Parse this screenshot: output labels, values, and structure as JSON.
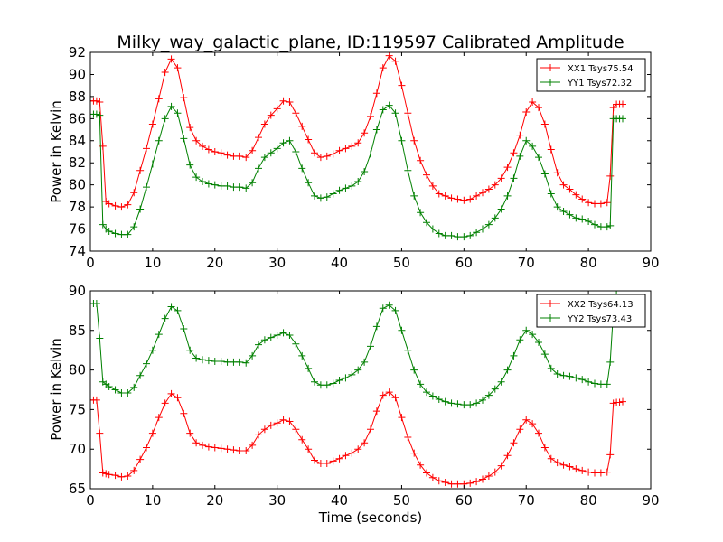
{
  "figure_title": "Milky_way_galactic_plane, ID:119597 Calibrated Amplitude",
  "chart_data": [
    {
      "type": "line",
      "title": "Milky_way_galactic_plane, ID:119597 Calibrated Amplitude",
      "xlabel": "",
      "ylabel": "Power in Kelvin",
      "xlim": [
        0,
        90
      ],
      "ylim": [
        74,
        92
      ],
      "xticks": [
        "0",
        "10",
        "20",
        "30",
        "40",
        "50",
        "60",
        "70",
        "80",
        "90"
      ],
      "yticks": [
        "74",
        "76",
        "78",
        "80",
        "82",
        "84",
        "86",
        "88",
        "90",
        "92"
      ],
      "marker": "+",
      "legend_position": "top-right",
      "series": [
        {
          "name": "XX1 Tsys75.54",
          "color": "#ff0000",
          "x": [
            0,
            0.5,
            1,
            1.5,
            2,
            2.5,
            3,
            4,
            5,
            6,
            7,
            8,
            9,
            10,
            11,
            12,
            13,
            14,
            15,
            16,
            17,
            18,
            19,
            20,
            21,
            22,
            23,
            24,
            25,
            26,
            27,
            28,
            29,
            30,
            31,
            32,
            33,
            34,
            35,
            36,
            37,
            38,
            39,
            40,
            41,
            42,
            43,
            44,
            45,
            46,
            47,
            48,
            49,
            50,
            51,
            52,
            53,
            54,
            55,
            56,
            57,
            58,
            59,
            60,
            61,
            62,
            63,
            64,
            65,
            66,
            67,
            68,
            69,
            70,
            71,
            72,
            73,
            74,
            75,
            76,
            77,
            78,
            79,
            80,
            81,
            82,
            83,
            83.5,
            84,
            84.5,
            85,
            85.5
          ],
          "y": [
            87.6,
            87.6,
            87.6,
            87.5,
            83.5,
            78.5,
            78.3,
            78.1,
            78,
            78.2,
            79.3,
            81.3,
            83.3,
            85.5,
            87.8,
            90.2,
            91.4,
            90.6,
            87.9,
            85.2,
            84,
            83.5,
            83.2,
            83,
            82.9,
            82.7,
            82.6,
            82.6,
            82.5,
            83.1,
            84.3,
            85.5,
            86.3,
            86.9,
            87.6,
            87.5,
            86.5,
            85.3,
            84.1,
            82.9,
            82.5,
            82.6,
            82.8,
            83.1,
            83.3,
            83.5,
            83.8,
            84.7,
            86.2,
            88.3,
            90.6,
            91.7,
            91.2,
            89,
            86.5,
            84,
            82.2,
            80.9,
            79.9,
            79.2,
            79,
            78.8,
            78.7,
            78.6,
            78.7,
            79,
            79.3,
            79.6,
            80,
            80.6,
            81.6,
            82.9,
            84.5,
            86.6,
            87.5,
            87,
            85.5,
            83.2,
            81.1,
            80,
            79.6,
            79.1,
            78.7,
            78.4,
            78.3,
            78.3,
            78.4,
            80.8,
            87,
            87.3,
            87.3,
            87.3
          ]
        },
        {
          "name": "YY1 Tsys72.32",
          "color": "#008000",
          "x": [
            0,
            0.5,
            1,
            1.5,
            2,
            2.5,
            3,
            4,
            5,
            6,
            7,
            8,
            9,
            10,
            11,
            12,
            13,
            14,
            15,
            16,
            17,
            18,
            19,
            20,
            21,
            22,
            23,
            24,
            25,
            26,
            27,
            28,
            29,
            30,
            31,
            32,
            33,
            34,
            35,
            36,
            37,
            38,
            39,
            40,
            41,
            42,
            43,
            44,
            45,
            46,
            47,
            48,
            49,
            50,
            51,
            52,
            53,
            54,
            55,
            56,
            57,
            58,
            59,
            60,
            61,
            62,
            63,
            64,
            65,
            66,
            67,
            68,
            69,
            70,
            71,
            72,
            73,
            74,
            75,
            76,
            77,
            78,
            79,
            80,
            81,
            82,
            83,
            83.5,
            84,
            84.5,
            85,
            85.5
          ],
          "y": [
            86.4,
            86.4,
            86.4,
            86.3,
            76.4,
            76,
            75.8,
            75.6,
            75.5,
            75.5,
            76.2,
            77.8,
            79.8,
            81.9,
            84,
            86,
            87.1,
            86.5,
            84.2,
            81.8,
            80.7,
            80.3,
            80.1,
            80,
            79.9,
            79.9,
            79.8,
            79.8,
            79.7,
            80.2,
            81.5,
            82.5,
            82.9,
            83.3,
            83.8,
            84,
            83,
            81.5,
            80.2,
            79,
            78.8,
            78.9,
            79.2,
            79.5,
            79.7,
            79.9,
            80.3,
            81.2,
            82.8,
            85,
            86.8,
            87.2,
            86.5,
            84,
            81.3,
            79,
            77.5,
            76.6,
            76,
            75.6,
            75.4,
            75.4,
            75.3,
            75.3,
            75.4,
            75.7,
            76,
            76.4,
            77,
            77.8,
            79,
            80.6,
            82.6,
            84,
            83.5,
            82.5,
            81,
            79.2,
            78,
            77.6,
            77.3,
            77,
            76.9,
            76.7,
            76.4,
            76.2,
            76.2,
            76.3,
            86,
            86,
            86,
            86
          ]
        }
      ]
    },
    {
      "type": "line",
      "title": "",
      "xlabel": "Time (seconds)",
      "ylabel": "Power in Kelvin",
      "xlim": [
        0,
        90
      ],
      "ylim": [
        65,
        90
      ],
      "xticks": [
        "0",
        "10",
        "20",
        "30",
        "40",
        "50",
        "60",
        "70",
        "80",
        "90"
      ],
      "yticks": [
        "65",
        "70",
        "75",
        "80",
        "85",
        "90"
      ],
      "marker": "+",
      "legend_position": "top-right",
      "series": [
        {
          "name": "XX2 Tsys64.13",
          "color": "#ff0000",
          "x": [
            0,
            0.5,
            1,
            1.5,
            2,
            2.5,
            3,
            4,
            5,
            6,
            7,
            8,
            9,
            10,
            11,
            12,
            13,
            14,
            15,
            16,
            17,
            18,
            19,
            20,
            21,
            22,
            23,
            24,
            25,
            26,
            27,
            28,
            29,
            30,
            31,
            32,
            33,
            34,
            35,
            36,
            37,
            38,
            39,
            40,
            41,
            42,
            43,
            44,
            45,
            46,
            47,
            48,
            49,
            50,
            51,
            52,
            53,
            54,
            55,
            56,
            57,
            58,
            59,
            60,
            61,
            62,
            63,
            64,
            65,
            66,
            67,
            68,
            69,
            70,
            71,
            72,
            73,
            74,
            75,
            76,
            77,
            78,
            79,
            80,
            81,
            82,
            83,
            83.5,
            84,
            84.5,
            85,
            85.5
          ],
          "y": [
            76.2,
            76.2,
            76.2,
            72,
            67,
            66.9,
            66.8,
            66.7,
            66.5,
            66.6,
            67.3,
            68.7,
            70.2,
            72,
            74,
            75.8,
            77,
            76.5,
            74.5,
            72,
            70.8,
            70.5,
            70.3,
            70.2,
            70.1,
            70,
            69.9,
            69.8,
            69.8,
            70.5,
            71.8,
            72.5,
            73,
            73.3,
            73.7,
            73.5,
            72.5,
            71.2,
            70,
            68.6,
            68.2,
            68.2,
            68.5,
            68.8,
            69.2,
            69.5,
            70,
            70.8,
            72.5,
            74.8,
            76.8,
            77.2,
            76.5,
            74,
            71.5,
            69.5,
            68,
            67,
            66.4,
            66,
            65.8,
            65.6,
            65.6,
            65.6,
            65.7,
            65.9,
            66.2,
            66.6,
            67.1,
            67.9,
            69.2,
            70.8,
            72.5,
            73.7,
            73.2,
            72,
            70.2,
            68.8,
            68.3,
            68,
            67.8,
            67.5,
            67.3,
            67.1,
            67,
            67,
            67.1,
            69.3,
            75.8,
            75.9,
            75.9,
            76
          ]
        },
        {
          "name": "YY2 Tsys73.43",
          "color": "#008000",
          "x": [
            0,
            0.5,
            1,
            1.5,
            2,
            2.5,
            3,
            4,
            5,
            6,
            7,
            8,
            9,
            10,
            11,
            12,
            13,
            14,
            15,
            16,
            17,
            18,
            19,
            20,
            21,
            22,
            23,
            24,
            25,
            26,
            27,
            28,
            29,
            30,
            31,
            32,
            33,
            34,
            35,
            36,
            37,
            38,
            39,
            40,
            41,
            42,
            43,
            44,
            45,
            46,
            47,
            48,
            49,
            50,
            51,
            52,
            53,
            54,
            55,
            56,
            57,
            58,
            59,
            60,
            61,
            62,
            63,
            64,
            65,
            66,
            67,
            68,
            69,
            70,
            71,
            72,
            73,
            74,
            75,
            76,
            77,
            78,
            79,
            80,
            81,
            82,
            83,
            83.5,
            84,
            84.5
          ],
          "y": [
            88.4,
            88.4,
            88.4,
            84,
            78.5,
            78.2,
            77.9,
            77.5,
            77.1,
            77.1,
            77.8,
            79.3,
            80.8,
            82.5,
            84.5,
            86.5,
            88,
            87.5,
            85.2,
            82.5,
            81.5,
            81.3,
            81.2,
            81.1,
            81.1,
            81,
            81,
            81,
            80.9,
            81.8,
            83.2,
            83.8,
            84.1,
            84.4,
            84.7,
            84.4,
            83.3,
            81.8,
            80.2,
            78.5,
            78.1,
            78.1,
            78.3,
            78.7,
            79,
            79.4,
            80,
            81,
            83,
            85.5,
            87.8,
            88.2,
            87.5,
            85,
            82.5,
            80,
            78.2,
            77.2,
            76.7,
            76.3,
            76,
            75.8,
            75.7,
            75.6,
            75.6,
            75.8,
            76.2,
            76.8,
            77.6,
            78.5,
            80,
            81.8,
            83.8,
            85,
            84.5,
            83.5,
            82,
            80.2,
            79.5,
            79.3,
            79.2,
            79,
            78.8,
            78.5,
            78.3,
            78.2,
            78.2,
            81,
            87.5,
            89.5
          ]
        }
      ]
    }
  ]
}
